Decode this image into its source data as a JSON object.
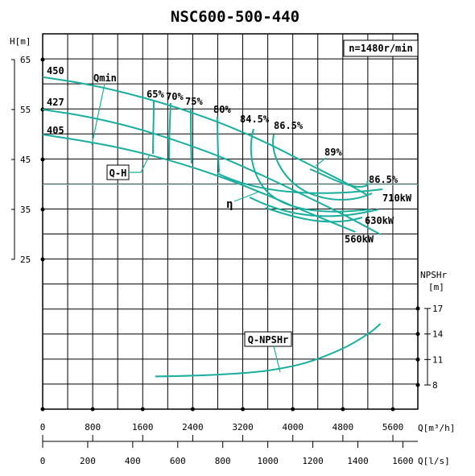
{
  "chart_data": {
    "type": "line",
    "title": "NSC600-500-440",
    "speed_label": "n=1480r/min",
    "ylabel_head": "H[m]",
    "ylabel_npsh_line1": "NPSHr",
    "ylabel_npsh_line2": "[m]",
    "xlabel_q_m3h": "Q[m³/h]",
    "xlabel_q_ls": "Q[l/s]",
    "head_ticks": [
      "65",
      "55",
      "45",
      "35",
      "25"
    ],
    "npsh_ticks": [
      "17",
      "14",
      "11",
      "8"
    ],
    "q_m3h_ticks": [
      "0",
      "800",
      "1600",
      "2400",
      "3200",
      "4000",
      "4800",
      "5600"
    ],
    "q_ls_ticks": [
      "0",
      "200",
      "400",
      "600",
      "800",
      "1000",
      "1200",
      "1400",
      "1600"
    ],
    "ylim_head": [
      25,
      65
    ],
    "ylim_npsh": [
      8,
      17
    ],
    "xlim_q_m3h": [
      0,
      5600
    ],
    "grid": true,
    "series": [
      {
        "name": "450",
        "x": [
          0,
          600,
          1200,
          1800,
          2400,
          3000,
          3600,
          4200,
          4800,
          5200
        ],
        "y": [
          61.5,
          60.3,
          58.7,
          56.7,
          54.3,
          51.5,
          48.2,
          44.4,
          40.6,
          37.8
        ]
      },
      {
        "name": "427",
        "x": [
          0,
          600,
          1200,
          1800,
          2400,
          3000,
          3600,
          4200,
          4800,
          5400
        ],
        "y": [
          55.0,
          53.8,
          52.2,
          50.1,
          47.6,
          44.7,
          41.3,
          37.7,
          34.0,
          30.0
        ]
      },
      {
        "name": "405",
        "x": [
          0,
          600,
          1200,
          1800,
          2400,
          3000,
          3600,
          4200,
          4800,
          5000
        ],
        "y": [
          50.0,
          48.8,
          47.4,
          45.6,
          43.4,
          40.8,
          37.8,
          34.6,
          31.5,
          30.5
        ]
      }
    ],
    "efficiency_labels": [
      "65%",
      "70%",
      "75%",
      "80%",
      "84.5%",
      "86.5%",
      "89%",
      "86.5%"
    ],
    "power_labels": [
      "710kW",
      "630kW",
      "560kW"
    ],
    "npshr_series": {
      "name": "Q-NPSHr",
      "x": [
        1800,
        2400,
        3000,
        3600,
        4200,
        4800,
        5200,
        5400
      ],
      "y": [
        9.0,
        9.1,
        9.3,
        9.7,
        10.6,
        12.3,
        14.0,
        15.2
      ]
    },
    "annotations": [
      "Qmin",
      "Q-H",
      "η",
      "Q-NPSHr"
    ]
  }
}
